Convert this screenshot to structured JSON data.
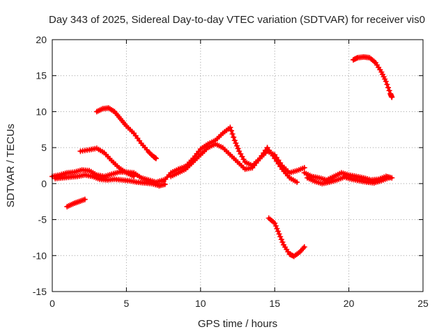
{
  "chart_data": {
    "type": "scatter",
    "title": "Day 343 of 2025, Sidereal Day-to-day VTEC variation (SDTVAR) for receiver vis0",
    "xlabel": "GPS time / hours",
    "ylabel": "SDTVAR / TECUs",
    "xlim": [
      0,
      25
    ],
    "ylim": [
      -15,
      20
    ],
    "xticks": [
      0,
      5,
      10,
      15,
      20,
      25
    ],
    "yticks": [
      -15,
      -10,
      -5,
      0,
      5,
      10,
      15,
      20
    ],
    "xtick_labels": [
      "0",
      "5",
      "10",
      "15",
      "20",
      "25"
    ],
    "ytick_labels": [
      "-15",
      "-10",
      "-5",
      "0",
      "5",
      "10",
      "15",
      "20"
    ],
    "grid": true,
    "marker_color": "#ff0000",
    "series": [
      {
        "name": "track-1",
        "points": [
          [
            0.0,
            1.0
          ],
          [
            0.5,
            1.2
          ],
          [
            1.0,
            1.5
          ],
          [
            1.5,
            1.6
          ],
          [
            2.0,
            1.9
          ],
          [
            2.5,
            1.8
          ],
          [
            3.0,
            1.2
          ],
          [
            3.5,
            1.0
          ],
          [
            4.0,
            1.3
          ],
          [
            4.5,
            1.6
          ],
          [
            5.0,
            1.6
          ],
          [
            5.5,
            1.5
          ],
          [
            6.0,
            0.8
          ],
          [
            6.5,
            0.5
          ],
          [
            7.0,
            0.2
          ],
          [
            7.5,
            0.5
          ]
        ]
      },
      {
        "name": "track-2",
        "points": [
          [
            0.2,
            0.7
          ],
          [
            0.7,
            0.8
          ],
          [
            1.2,
            0.9
          ],
          [
            1.7,
            1.0
          ],
          [
            2.2,
            1.2
          ],
          [
            2.7,
            1.0
          ],
          [
            3.2,
            0.6
          ],
          [
            3.7,
            0.5
          ],
          [
            4.2,
            0.6
          ],
          [
            4.7,
            0.5
          ],
          [
            5.2,
            0.4
          ],
          [
            5.7,
            0.2
          ],
          [
            6.2,
            0.1
          ],
          [
            6.7,
            0.0
          ],
          [
            7.2,
            -0.3
          ],
          [
            7.6,
            -0.1
          ]
        ]
      },
      {
        "name": "track-3",
        "points": [
          [
            1.0,
            -3.2
          ],
          [
            1.4,
            -2.8
          ],
          [
            1.8,
            -2.5
          ],
          [
            2.2,
            -2.2
          ]
        ]
      },
      {
        "name": "track-4",
        "points": [
          [
            1.9,
            4.5
          ],
          [
            2.5,
            4.7
          ],
          [
            3.0,
            4.9
          ],
          [
            3.5,
            4.3
          ],
          [
            4.0,
            3.2
          ],
          [
            4.5,
            2.2
          ],
          [
            5.0,
            1.5
          ],
          [
            5.5,
            1.0
          ]
        ]
      },
      {
        "name": "track-5",
        "points": [
          [
            3.0,
            10.0
          ],
          [
            3.4,
            10.4
          ],
          [
            3.8,
            10.5
          ],
          [
            4.2,
            10.0
          ],
          [
            4.6,
            9.0
          ],
          [
            5.0,
            8.0
          ],
          [
            5.5,
            7.0
          ],
          [
            6.0,
            5.6
          ],
          [
            6.5,
            4.4
          ],
          [
            6.8,
            3.8
          ],
          [
            7.0,
            3.5
          ]
        ]
      },
      {
        "name": "track-6",
        "points": [
          [
            7.5,
            0.3
          ],
          [
            8.0,
            1.5
          ],
          [
            8.5,
            2.0
          ],
          [
            9.0,
            2.4
          ],
          [
            9.5,
            3.5
          ],
          [
            10.0,
            4.8
          ],
          [
            10.5,
            5.5
          ],
          [
            11.0,
            6.0
          ],
          [
            11.5,
            7.0
          ],
          [
            12.0,
            7.8
          ],
          [
            12.3,
            6.0
          ],
          [
            12.6,
            4.5
          ],
          [
            13.0,
            3.0
          ],
          [
            13.5,
            2.5
          ],
          [
            14.0,
            3.5
          ],
          [
            14.5,
            4.5
          ],
          [
            15.0,
            4.0
          ],
          [
            15.5,
            2.5
          ],
          [
            16.0,
            1.5
          ],
          [
            16.5,
            1.8
          ],
          [
            17.0,
            2.2
          ]
        ]
      },
      {
        "name": "track-7",
        "points": [
          [
            8.0,
            1.0
          ],
          [
            8.5,
            1.5
          ],
          [
            9.0,
            2.0
          ],
          [
            9.5,
            3.0
          ],
          [
            10.0,
            4.0
          ],
          [
            10.5,
            5.0
          ],
          [
            11.0,
            5.5
          ],
          [
            11.5,
            5.0
          ],
          [
            12.0,
            4.0
          ],
          [
            12.5,
            3.0
          ],
          [
            13.0,
            2.0
          ],
          [
            13.5,
            2.2
          ],
          [
            14.0,
            3.5
          ],
          [
            14.5,
            5.0
          ],
          [
            15.0,
            3.5
          ],
          [
            15.5,
            2.0
          ],
          [
            16.0,
            0.8
          ],
          [
            16.5,
            0.2
          ]
        ]
      },
      {
        "name": "track-8",
        "points": [
          [
            14.6,
            -4.8
          ],
          [
            15.0,
            -5.5
          ],
          [
            15.3,
            -7.0
          ],
          [
            15.6,
            -8.5
          ],
          [
            16.0,
            -9.8
          ],
          [
            16.3,
            -10.1
          ],
          [
            16.7,
            -9.5
          ],
          [
            17.0,
            -8.8
          ]
        ]
      },
      {
        "name": "track-9",
        "points": [
          [
            17.0,
            1.5
          ],
          [
            17.5,
            1.0
          ],
          [
            18.0,
            0.8
          ],
          [
            18.5,
            0.5
          ],
          [
            19.0,
            1.0
          ],
          [
            19.5,
            1.5
          ],
          [
            20.0,
            1.2
          ],
          [
            20.5,
            1.0
          ],
          [
            21.0,
            0.8
          ],
          [
            21.5,
            0.5
          ],
          [
            22.0,
            0.6
          ],
          [
            22.5,
            1.0
          ],
          [
            22.9,
            0.8
          ]
        ]
      },
      {
        "name": "track-10",
        "points": [
          [
            17.2,
            0.8
          ],
          [
            17.7,
            0.3
          ],
          [
            18.2,
            0.0
          ],
          [
            18.7,
            0.2
          ],
          [
            19.2,
            0.5
          ],
          [
            19.7,
            0.9
          ],
          [
            20.2,
            0.6
          ],
          [
            20.7,
            0.4
          ],
          [
            21.2,
            0.2
          ],
          [
            21.7,
            0.1
          ],
          [
            22.2,
            0.4
          ],
          [
            22.7,
            0.8
          ]
        ]
      },
      {
        "name": "track-11",
        "points": [
          [
            20.3,
            17.2
          ],
          [
            20.6,
            17.5
          ],
          [
            21.0,
            17.6
          ],
          [
            21.4,
            17.5
          ],
          [
            21.8,
            16.8
          ],
          [
            22.2,
            15.5
          ],
          [
            22.5,
            14.2
          ],
          [
            22.8,
            12.5
          ],
          [
            22.9,
            12.0
          ]
        ]
      }
    ]
  }
}
